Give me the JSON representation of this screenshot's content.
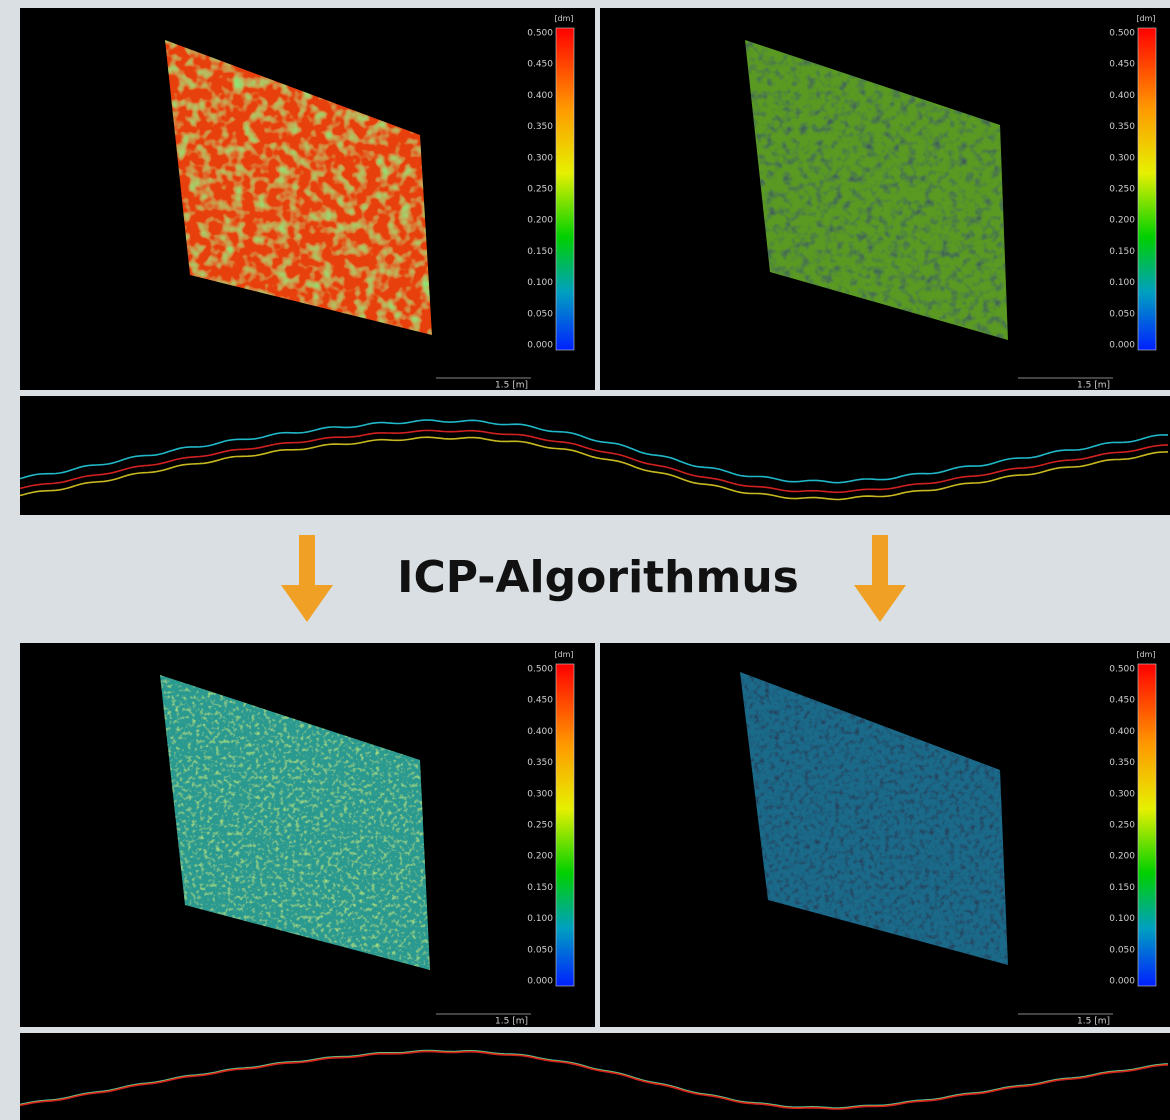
{
  "title": "ICP-Algorithmus",
  "colorbar": {
    "unit": "[dm]",
    "labels": [
      "0.500",
      "0.450",
      "0.400",
      "0.350",
      "0.300",
      "0.250",
      "0.200",
      "0.150",
      "0.100",
      "0.050",
      "0.000"
    ]
  },
  "scale_bar": "1.5 [m]"
}
